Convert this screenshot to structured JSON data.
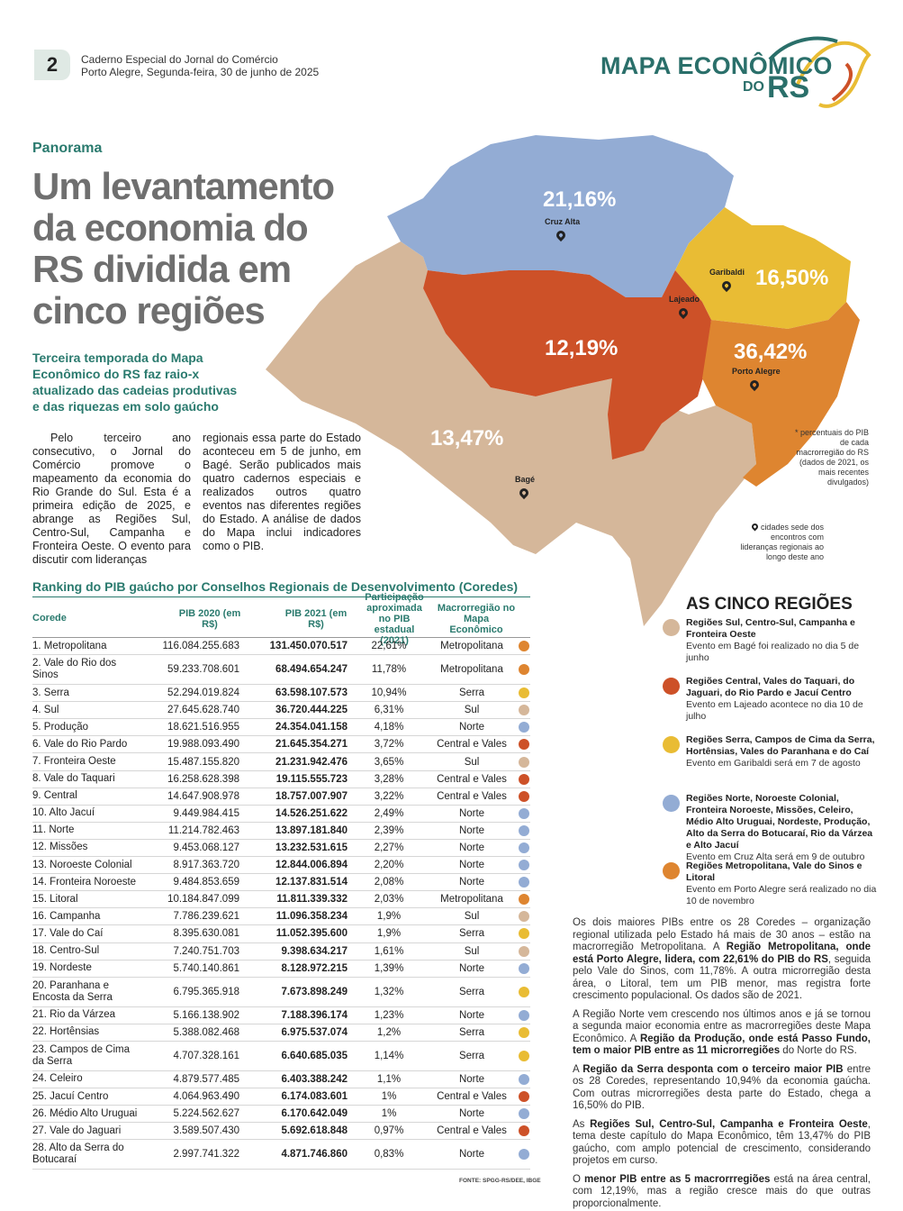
{
  "header": {
    "page_number": "2",
    "publication": "Caderno Especial do Jornal do Comércio",
    "dateline": "Porto Alegre, Segunda-feira, 30 de junho de 2025",
    "masthead_line1": "MAPA ECONÔMICO",
    "masthead_do": "DO",
    "masthead_rs": "RS"
  },
  "article": {
    "kicker": "Panorama",
    "headline": "Um levantamento da economia do RS dividida em cinco regiões",
    "deck": "Terceira temporada do Mapa Econômico do RS faz raio-x atualizado das cadeias produtivas e das riquezas em solo gaúcho",
    "col1": "Pelo terceiro ano consecutivo, o Jornal do Comércio promove o mapeamento da economia do Rio Grande do Sul. Esta é a primeira edição de 2025, e abrange as Regiões Sul, Centro-Sul, Campanha e Fronteira Oeste. O evento para discutir com lideranças",
    "col2": "regionais essa parte do Estado aconteceu em 5 de junho, em Bagé. Serão publicados mais quatro cadernos especiais e realizados outros quatro eventos nas diferentes regiões do Estado. A análise de dados do Mapa inclui indicadores como o PIB."
  },
  "map": {
    "pct_norte": "21,16%",
    "pct_serra": "16,50%",
    "pct_central": "12,19%",
    "pct_metro": "36,42%",
    "pct_sul": "13,47%",
    "city_cruz_alta": "Cruz Alta",
    "city_garibaldi": "Garibaldi",
    "city_lajeado": "Lajeado",
    "city_porto_alegre": "Porto Alegre",
    "city_bage": "Bagé",
    "note_pct": "* percentuais do PIB de cada macrorregião do RS (dados de 2021, os mais recentes divulgados)",
    "note_pin": "cidades sede dos encontros com lideranças regionais ao longo deste ano",
    "colors": {
      "norte": "#93acd4",
      "serra": "#e9bc34",
      "central": "#cd5128",
      "metro": "#de8530",
      "sul": "#d5b79a"
    }
  },
  "table": {
    "title": "Ranking do PIB gaúcho por Conselhos Regionais de Desenvolvimento (Coredes)",
    "headers": {
      "corede": "Corede",
      "pib2020": "PIB 2020 (em R$)",
      "pib2021": "PIB 2021 (em R$)",
      "part": "Participação aproximada no PIB estadual (2021)",
      "macro": "Macrorregião no Mapa Econômico"
    },
    "rows": [
      {
        "name": "1. Metropolitana",
        "pib2020": "116.084.255.683",
        "pib2021": "131.450.070.517",
        "part": "22,61%",
        "macro": "Metropolitana",
        "color": "#de8530"
      },
      {
        "name": "2. Vale do Rio dos Sinos",
        "pib2020": "59.233.708.601",
        "pib2021": "68.494.654.247",
        "part": "11,78%",
        "macro": "Metropolitana",
        "color": "#de8530"
      },
      {
        "name": "3. Serra",
        "pib2020": "52.294.019.824",
        "pib2021": "63.598.107.573",
        "part": "10,94%",
        "macro": "Serra",
        "color": "#e9bc34"
      },
      {
        "name": "4. Sul",
        "pib2020": "27.645.628.740",
        "pib2021": "36.720.444.225",
        "part": "6,31%",
        "macro": "Sul",
        "color": "#d5b79a"
      },
      {
        "name": "5. Produção",
        "pib2020": "18.621.516.955",
        "pib2021": "24.354.041.158",
        "part": "4,18%",
        "macro": "Norte",
        "color": "#93acd4"
      },
      {
        "name": "6. Vale do Rio Pardo",
        "pib2020": "19.988.093.490",
        "pib2021": "21.645.354.271",
        "part": "3,72%",
        "macro": "Central e Vales",
        "color": "#cd5128"
      },
      {
        "name": "7. Fronteira Oeste",
        "pib2020": "15.487.155.820",
        "pib2021": "21.231.942.476",
        "part": "3,65%",
        "macro": "Sul",
        "color": "#d5b79a"
      },
      {
        "name": "8. Vale do Taquari",
        "pib2020": "16.258.628.398",
        "pib2021": "19.115.555.723",
        "part": "3,28%",
        "macro": "Central e Vales",
        "color": "#cd5128"
      },
      {
        "name": "9. Central",
        "pib2020": "14.647.908.978",
        "pib2021": "18.757.007.907",
        "part": "3,22%",
        "macro": "Central e Vales",
        "color": "#cd5128"
      },
      {
        "name": "10. Alto Jacuí",
        "pib2020": "9.449.984.415",
        "pib2021": "14.526.251.622",
        "part": "2,49%",
        "macro": "Norte",
        "color": "#93acd4"
      },
      {
        "name": "11. Norte",
        "pib2020": "11.214.782.463",
        "pib2021": "13.897.181.840",
        "part": "2,39%",
        "macro": "Norte",
        "color": "#93acd4"
      },
      {
        "name": "12. Missões",
        "pib2020": "9.453.068.127",
        "pib2021": "13.232.531.615",
        "part": "2,27%",
        "macro": "Norte",
        "color": "#93acd4"
      },
      {
        "name": "13. Noroeste Colonial",
        "pib2020": "8.917.363.720",
        "pib2021": "12.844.006.894",
        "part": "2,20%",
        "macro": "Norte",
        "color": "#93acd4"
      },
      {
        "name": "14. Fronteira Noroeste",
        "pib2020": "9.484.853.659",
        "pib2021": "12.137.831.514",
        "part": "2,08%",
        "macro": "Norte",
        "color": "#93acd4"
      },
      {
        "name": "15. Litoral",
        "pib2020": "10.184.847.099",
        "pib2021": "11.811.339.332",
        "part": "2,03%",
        "macro": "Metropolitana",
        "color": "#de8530"
      },
      {
        "name": "16. Campanha",
        "pib2020": "7.786.239.621",
        "pib2021": "11.096.358.234",
        "part": "1,9%",
        "macro": "Sul",
        "color": "#d5b79a"
      },
      {
        "name": "17. Vale do Caí",
        "pib2020": "8.395.630.081",
        "pib2021": "11.052.395.600",
        "part": "1,9%",
        "macro": "Serra",
        "color": "#e9bc34"
      },
      {
        "name": "18. Centro-Sul",
        "pib2020": "7.240.751.703",
        "pib2021": "9.398.634.217",
        "part": "1,61%",
        "macro": "Sul",
        "color": "#d5b79a"
      },
      {
        "name": "19. Nordeste",
        "pib2020": "5.740.140.861",
        "pib2021": "8.128.972.215",
        "part": "1,39%",
        "macro": "Norte",
        "color": "#93acd4"
      },
      {
        "name": "20. Paranhana e Encosta da Serra",
        "pib2020": "6.795.365.918",
        "pib2021": "7.673.898.249",
        "part": "1,32%",
        "macro": "Serra",
        "color": "#e9bc34"
      },
      {
        "name": "21. Rio da Várzea",
        "pib2020": "5.166.138.902",
        "pib2021": "7.188.396.174",
        "part": "1,23%",
        "macro": "Norte",
        "color": "#93acd4"
      },
      {
        "name": "22. Hortênsias",
        "pib2020": "5.388.082.468",
        "pib2021": "6.975.537.074",
        "part": "1,2%",
        "macro": "Serra",
        "color": "#e9bc34"
      },
      {
        "name": "23. Campos de Cima da Serra",
        "pib2020": "4.707.328.161",
        "pib2021": "6.640.685.035",
        "part": "1,14%",
        "macro": "Serra",
        "color": "#e9bc34"
      },
      {
        "name": "24. Celeiro",
        "pib2020": "4.879.577.485",
        "pib2021": "6.403.388.242",
        "part": "1,1%",
        "macro": "Norte",
        "color": "#93acd4"
      },
      {
        "name": "25. Jacuí Centro",
        "pib2020": "4.064.963.490",
        "pib2021": "6.174.083.601",
        "part": "1%",
        "macro": "Central e Vales",
        "color": "#cd5128"
      },
      {
        "name": "26. Médio Alto Uruguai",
        "pib2020": "5.224.562.627",
        "pib2021": "6.170.642.049",
        "part": "1%",
        "macro": "Norte",
        "color": "#93acd4"
      },
      {
        "name": "27. Vale do Jaguari",
        "pib2020": "3.589.507.430",
        "pib2021": "5.692.618.848",
        "part": "0,97%",
        "macro": "Central e Vales",
        "color": "#cd5128"
      },
      {
        "name": "28. Alto da Serra do Botucaraí",
        "pib2020": "2.997.741.322",
        "pib2021": "4.871.746.860",
        "part": "0,83%",
        "macro": "Norte",
        "color": "#93acd4"
      }
    ],
    "source": "FONTE: SPGG-RS/DEE, IBGE"
  },
  "legend": {
    "title": "AS CINCO REGIÕES",
    "items": [
      {
        "title": "Regiões Sul, Centro-Sul, Campanha e Fronteira Oeste",
        "desc": "Evento em Bagé foi realizado no dia 5 de junho",
        "color": "#d5b79a"
      },
      {
        "title": "Regiões Central, Vales do Taquari, do Jaguari, do Rio Pardo e Jacuí Centro",
        "desc": "Evento em Lajeado acontece no dia 10 de julho",
        "color": "#cd5128"
      },
      {
        "title": "Regiões Serra, Campos de Cima da Serra, Hortênsias, Vales do Paranhana e do Caí",
        "desc": "Evento em Garibaldi será em 7 de agosto",
        "color": "#e9bc34"
      },
      {
        "title": "Regiões Norte, Noroeste Colonial, Fronteira Noroeste, Missões, Celeiro, Médio Alto Uruguai, Nordeste, Produção, Alto da Serra do Botucaraí, Rio da Várzea e Alto Jacuí",
        "desc": "Evento em Cruz Alta será em 9 de outubro",
        "color": "#93acd4"
      },
      {
        "title": "Regiões Metropolitana, Vale do Sinos e Litoral",
        "desc": "Evento em Porto Alegre será realizado no dia 10 de novembro",
        "color": "#de8530"
      }
    ]
  },
  "right_text": {
    "p1a": "Os dois maiores PIBs entre os 28 Coredes – organização regional utilizada pelo Estado há mais de 30 anos – estão na macrorregião Metropolitana. A ",
    "p1b": "Região Metropolitana, onde está Porto Alegre, lidera, com 22,61% do PIB do RS",
    "p1c": ", seguida pelo Vale do Sinos, com 11,78%. A outra microrregião desta área, o Litoral, tem um PIB menor, mas registra forte crescimento populacional. Os dados são de 2021.",
    "p2a": "A Região Norte vem crescendo nos últimos anos e já se tornou a segunda maior economia entre as macrorregiões deste Mapa Econômico. A ",
    "p2b": "Região da Produção, onde está Passo Fundo, tem o maior PIB entre as 11 microrregiões",
    "p2c": " do Norte do RS.",
    "p3a": "A ",
    "p3b": "Região da Serra desponta com o terceiro maior PIB",
    "p3c": " entre os 28 Coredes, representando 10,94% da economia gaúcha. Com outras microrregiões desta parte do Estado, chega a 16,50% do PIB.",
    "p4a": "As ",
    "p4b": "Regiões Sul, Centro-Sul, Campanha e Fronteira Oeste",
    "p4c": ", tema deste capítulo do Mapa Econômico, têm 13,47% do PIB gaúcho, com amplo potencial de crescimento, considerando projetos em curso.",
    "p5a": "O ",
    "p5b": "menor PIB entre as 5 macrorrregiões",
    "p5c": " está na área central, com 12,19%, mas a região cresce mais do que outras proporcionalmente."
  }
}
